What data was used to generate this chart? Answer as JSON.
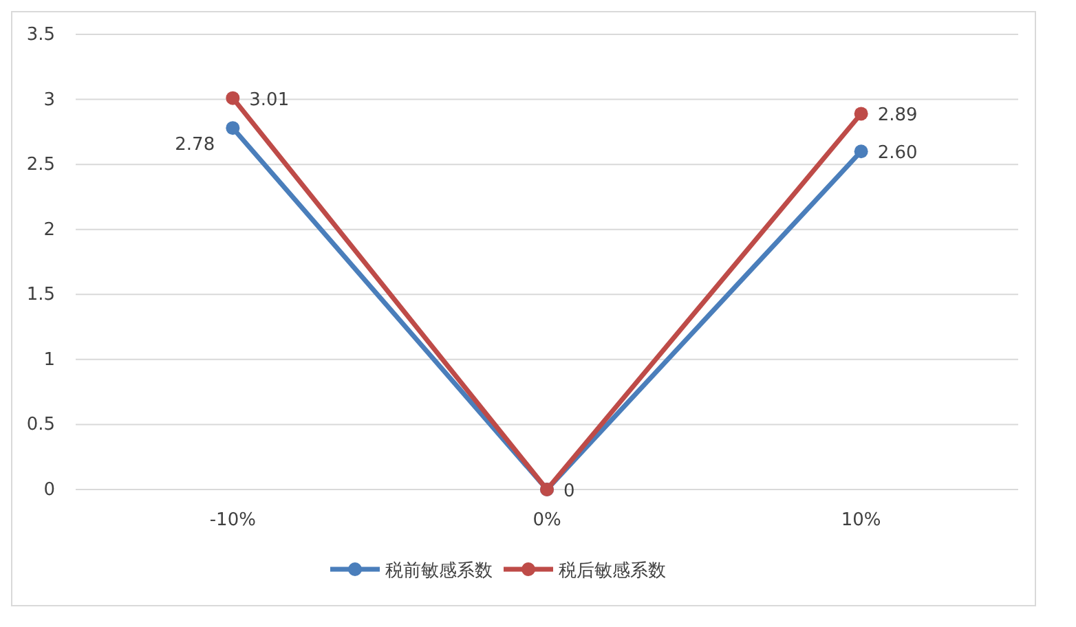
{
  "chart_data": {
    "type": "line",
    "categories": [
      "-10%",
      "0%",
      "10%"
    ],
    "series": [
      {
        "name": "税前敏感系数",
        "color": "#4a7ebb",
        "values": [
          2.78,
          0,
          2.6
        ],
        "value_labels": [
          "2.78",
          null,
          "2.60"
        ]
      },
      {
        "name": "税后敏感系数",
        "color": "#be4b48",
        "values": [
          3.01,
          0,
          2.89
        ],
        "value_labels": [
          "3.01",
          "0",
          "2.89"
        ]
      }
    ],
    "ylim": [
      0,
      3.5
    ],
    "yticks": [
      0,
      0.5,
      1,
      1.5,
      2,
      2.5,
      3,
      3.5
    ],
    "grid": "y",
    "legend": "bottom",
    "marker": "circle",
    "line_style": "solid"
  }
}
